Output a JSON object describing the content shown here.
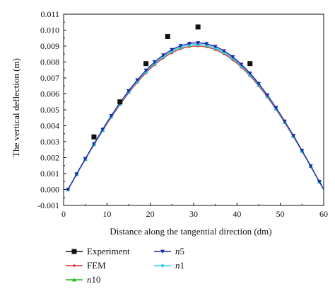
{
  "chart_data": {
    "type": "line",
    "xlabel": "Distance along the tangential direction (dm)",
    "ylabel": "The vertical deflection (m)",
    "xlim": [
      0,
      60
    ],
    "ylim": [
      -0.001,
      0.011
    ],
    "xticks": [
      0,
      10,
      20,
      30,
      40,
      50,
      60
    ],
    "yticks": [
      -0.001,
      0.0,
      0.001,
      0.002,
      0.003,
      0.004,
      0.005,
      0.006,
      0.007,
      0.008,
      0.009,
      0.01,
      0.011
    ],
    "xtick_labels": [
      "0",
      "10",
      "20",
      "30",
      "40",
      "50",
      "60"
    ],
    "ytick_labels": [
      "-0.001",
      "0.000",
      "0.001",
      "0.002",
      "0.003",
      "0.004",
      "0.005",
      "0.006",
      "0.007",
      "0.008",
      "0.009",
      "0.010",
      "0.011"
    ],
    "grid": false,
    "legend_position": "bottom",
    "series": [
      {
        "name": "Experiment",
        "color": "#111111",
        "marker": "square",
        "line": false,
        "x": [
          7,
          13,
          19,
          24,
          31,
          43
        ],
        "y": [
          0.0033,
          0.0055,
          0.0079,
          0.0096,
          0.0102,
          0.0079
        ]
      },
      {
        "name": "FEM",
        "color": "#e03030",
        "marker": "circle",
        "line": true,
        "curve": {
          "x_start": 1,
          "x_end": 60,
          "y_peak": 0.009,
          "x_peak": 30.8
        }
      },
      {
        "name": "n10",
        "color": "#22bb22",
        "marker": "triangle",
        "line": true,
        "curve": {
          "x_start": 1,
          "x_end": 60,
          "y_peak": 0.0091,
          "x_peak": 30.8
        }
      },
      {
        "name": "n5",
        "color": "#1a2aa8",
        "marker": "triangle-down",
        "line": true,
        "curve": {
          "x_start": 1,
          "x_end": 60,
          "y_peak": 0.0092,
          "x_peak": 30.8
        }
      },
      {
        "name": "n1",
        "color": "#33ccee",
        "marker": "diamond",
        "line": true,
        "curve": {
          "x_start": 1,
          "x_end": 60,
          "y_peak": 0.0091,
          "x_peak": 30.8
        }
      }
    ]
  },
  "legend": [
    {
      "prefix": "",
      "suffix": "Experiment"
    },
    {
      "prefix": "",
      "suffix": "FEM"
    },
    {
      "prefix": "n",
      "suffix": "10"
    },
    {
      "prefix": "n",
      "suffix": "5"
    },
    {
      "prefix": "n",
      "suffix": "1"
    }
  ]
}
